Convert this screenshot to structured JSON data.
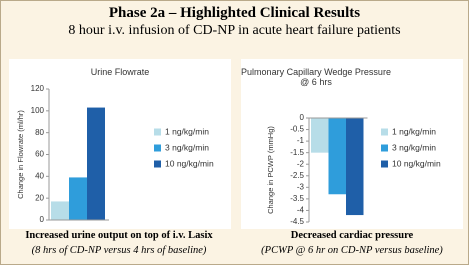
{
  "header": {
    "title": "Phase 2a – Highlighted Clinical Results",
    "subtitle": "8 hour i.v. infusion of CD-NP in acute heart failure patients"
  },
  "chart_data": [
    {
      "type": "bar",
      "title": "Urine Flowrate",
      "y_label": "Change in Flowrate (ml/hr)",
      "series": [
        {
          "name": "1 ng/kg/min",
          "color": "#b7dde8",
          "values": [
            17
          ]
        },
        {
          "name": "3 ng/kg/min",
          "color": "#2f9ddb",
          "values": [
            39
          ]
        },
        {
          "name": "10 ng/kg/min",
          "color": "#1f5fa8",
          "values": [
            103
          ]
        }
      ],
      "ylim": [
        0,
        120
      ],
      "yticks": [
        0,
        20,
        40,
        60,
        80,
        100,
        120
      ],
      "annotations": [
        "Increased urine output on top of i.v. Lasix",
        "(8 hrs of CD-NP versus 4 hrs of baseline)"
      ]
    },
    {
      "type": "bar",
      "title": "Pulmonary Capillary Wedge Pressure @ 6 hrs",
      "y_label": "Change in PCWP (mmHg)",
      "series": [
        {
          "name": "1 ng/kg/min",
          "color": "#b7dde8",
          "values": [
            -1.5
          ]
        },
        {
          "name": "3 ng/kg/min",
          "color": "#2f9ddb",
          "values": [
            -3.3
          ]
        },
        {
          "name": "10 ng/kg/min",
          "color": "#1f5fa8",
          "values": [
            -4.2
          ]
        }
      ],
      "ylim": [
        -4.5,
        0
      ],
      "yticks": [
        0,
        -0.5,
        -1,
        -1.5,
        -2,
        -2.5,
        -3,
        -3.5,
        -4,
        -4.5
      ],
      "annotations": [
        "Decreased cardiac pressure",
        "(PCWP @ 6 hr on CD-NP versus baseline)"
      ]
    }
  ]
}
